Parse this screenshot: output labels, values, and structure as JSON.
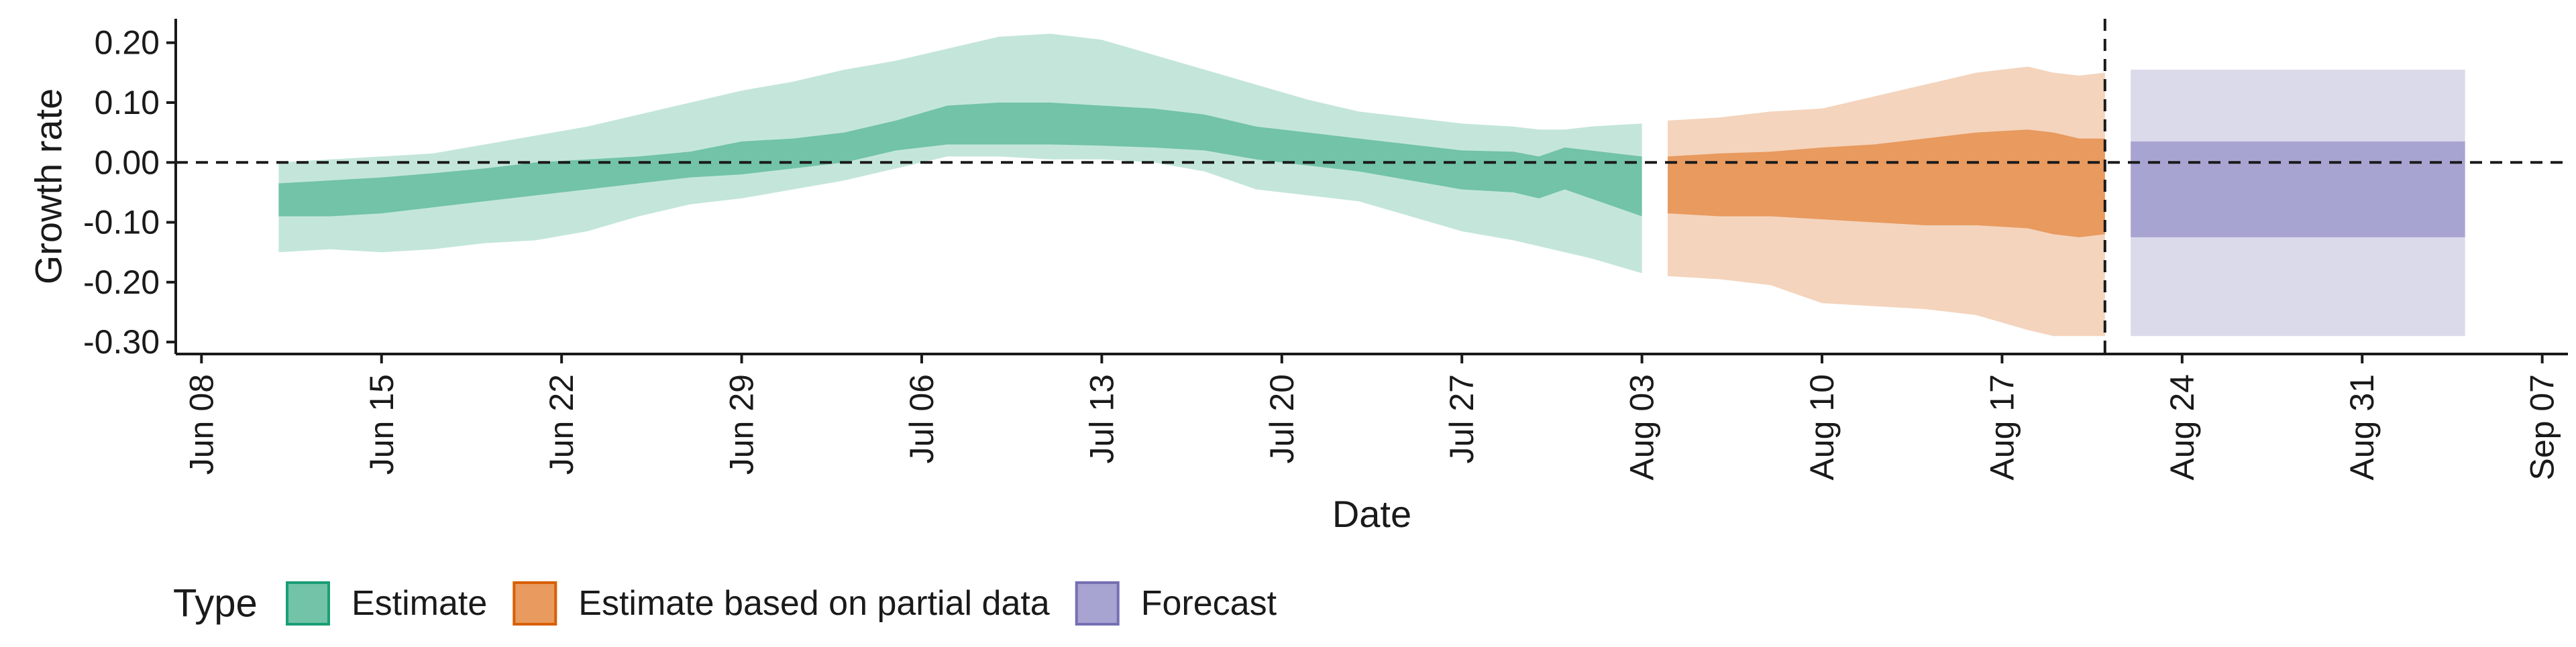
{
  "chart_data": {
    "type": "area",
    "xlabel": "Date",
    "ylabel": "Growth rate",
    "ylim": [
      -0.32,
      0.24
    ],
    "xlim": [
      "2020-06-07",
      "2020-09-08"
    ],
    "grid": false,
    "legend": {
      "title": "Type",
      "position": "bottom-left",
      "entries": [
        {
          "label": "Estimate",
          "fill": "#72c3a7",
          "stroke": "#1b9e77"
        },
        {
          "label": "Estimate based on partial data",
          "fill": "#e89a5f",
          "stroke": "#d95f02"
        },
        {
          "label": "Forecast",
          "fill": "#a8a4d1",
          "stroke": "#7570b3"
        }
      ]
    },
    "x_ticks": [
      {
        "date": "2020-06-08",
        "label": "Jun 08"
      },
      {
        "date": "2020-06-15",
        "label": "Jun 15"
      },
      {
        "date": "2020-06-22",
        "label": "Jun 22"
      },
      {
        "date": "2020-06-29",
        "label": "Jun 29"
      },
      {
        "date": "2020-07-06",
        "label": "Jul 06"
      },
      {
        "date": "2020-07-13",
        "label": "Jul 13"
      },
      {
        "date": "2020-07-20",
        "label": "Jul 20"
      },
      {
        "date": "2020-07-27",
        "label": "Jul 27"
      },
      {
        "date": "2020-08-03",
        "label": "Aug 03"
      },
      {
        "date": "2020-08-10",
        "label": "Aug 10"
      },
      {
        "date": "2020-08-17",
        "label": "Aug 17"
      },
      {
        "date": "2020-08-24",
        "label": "Aug 24"
      },
      {
        "date": "2020-08-31",
        "label": "Aug 31"
      },
      {
        "date": "2020-09-07",
        "label": "Sep 07"
      }
    ],
    "y_ticks": [
      {
        "value": 0.2,
        "label": "0.20"
      },
      {
        "value": 0.1,
        "label": "0.10"
      },
      {
        "value": 0.0,
        "label": "0.00"
      },
      {
        "value": -0.1,
        "label": "-0.10"
      },
      {
        "value": -0.2,
        "label": "-0.20"
      },
      {
        "value": -0.3,
        "label": "-0.30"
      }
    ],
    "reference_lines": {
      "horizontal_y": 0.0,
      "vertical_date": "2020-08-21"
    },
    "series": [
      {
        "name": "Estimate",
        "fill_outer": "#c4e6da",
        "fill_inner": "#72c3a7",
        "dates": [
          "2020-06-11",
          "2020-06-13",
          "2020-06-15",
          "2020-06-17",
          "2020-06-19",
          "2020-06-21",
          "2020-06-23",
          "2020-06-25",
          "2020-06-27",
          "2020-06-29",
          "2020-07-01",
          "2020-07-03",
          "2020-07-05",
          "2020-07-07",
          "2020-07-09",
          "2020-07-11",
          "2020-07-13",
          "2020-07-15",
          "2020-07-17",
          "2020-07-19",
          "2020-07-21",
          "2020-07-23",
          "2020-07-25",
          "2020-07-27",
          "2020-07-29",
          "2020-07-30",
          "2020-07-31",
          "2020-08-01",
          "2020-08-03"
        ],
        "lower_90": [
          -0.15,
          -0.145,
          -0.15,
          -0.145,
          -0.135,
          -0.13,
          -0.115,
          -0.09,
          -0.07,
          -0.06,
          -0.045,
          -0.03,
          -0.01,
          0.01,
          0.01,
          0.005,
          0.005,
          0.0,
          -0.015,
          -0.045,
          -0.055,
          -0.065,
          -0.09,
          -0.115,
          -0.13,
          -0.14,
          -0.15,
          -0.16,
          -0.185
        ],
        "lower_50": [
          -0.09,
          -0.09,
          -0.085,
          -0.075,
          -0.065,
          -0.055,
          -0.045,
          -0.035,
          -0.025,
          -0.02,
          -0.01,
          0.0,
          0.02,
          0.03,
          0.03,
          0.03,
          0.028,
          0.025,
          0.02,
          0.005,
          -0.005,
          -0.015,
          -0.03,
          -0.045,
          -0.05,
          -0.06,
          -0.045,
          -0.06,
          -0.09
        ],
        "upper_50": [
          -0.035,
          -0.03,
          -0.025,
          -0.018,
          -0.01,
          0.0,
          0.005,
          0.01,
          0.018,
          0.035,
          0.04,
          0.05,
          0.07,
          0.095,
          0.1,
          0.1,
          0.095,
          0.09,
          0.08,
          0.06,
          0.05,
          0.04,
          0.03,
          0.02,
          0.018,
          0.01,
          0.025,
          0.02,
          0.01
        ],
        "upper_90": [
          0.0,
          0.005,
          0.01,
          0.015,
          0.03,
          0.045,
          0.06,
          0.08,
          0.1,
          0.12,
          0.135,
          0.155,
          0.17,
          0.19,
          0.21,
          0.215,
          0.205,
          0.18,
          0.155,
          0.13,
          0.105,
          0.085,
          0.075,
          0.065,
          0.06,
          0.055,
          0.055,
          0.06,
          0.065
        ]
      },
      {
        "name": "Estimate based on partial data",
        "fill_outer": "#f4d4bd",
        "fill_inner": "#e89a5f",
        "dates": [
          "2020-08-04",
          "2020-08-06",
          "2020-08-08",
          "2020-08-10",
          "2020-08-12",
          "2020-08-14",
          "2020-08-16",
          "2020-08-18",
          "2020-08-19",
          "2020-08-20",
          "2020-08-21"
        ],
        "lower_90": [
          -0.19,
          -0.195,
          -0.205,
          -0.235,
          -0.24,
          -0.245,
          -0.255,
          -0.28,
          -0.29,
          -0.29,
          -0.29
        ],
        "lower_50": [
          -0.085,
          -0.09,
          -0.09,
          -0.095,
          -0.1,
          -0.105,
          -0.105,
          -0.11,
          -0.12,
          -0.125,
          -0.12
        ],
        "upper_50": [
          0.01,
          0.015,
          0.018,
          0.025,
          0.03,
          0.04,
          0.05,
          0.055,
          0.05,
          0.04,
          0.04
        ],
        "upper_90": [
          0.07,
          0.075,
          0.085,
          0.09,
          0.11,
          0.13,
          0.15,
          0.16,
          0.15,
          0.145,
          0.15
        ]
      },
      {
        "name": "Forecast",
        "fill_outer": "#dadaeb",
        "fill_inner": "#a8a4d1",
        "dates": [
          "2020-08-22",
          "2020-09-04"
        ],
        "lower_90": [
          -0.29,
          -0.29
        ],
        "lower_50": [
          -0.125,
          -0.125
        ],
        "upper_50": [
          0.035,
          0.035
        ],
        "upper_90": [
          0.155,
          0.155
        ]
      }
    ]
  }
}
